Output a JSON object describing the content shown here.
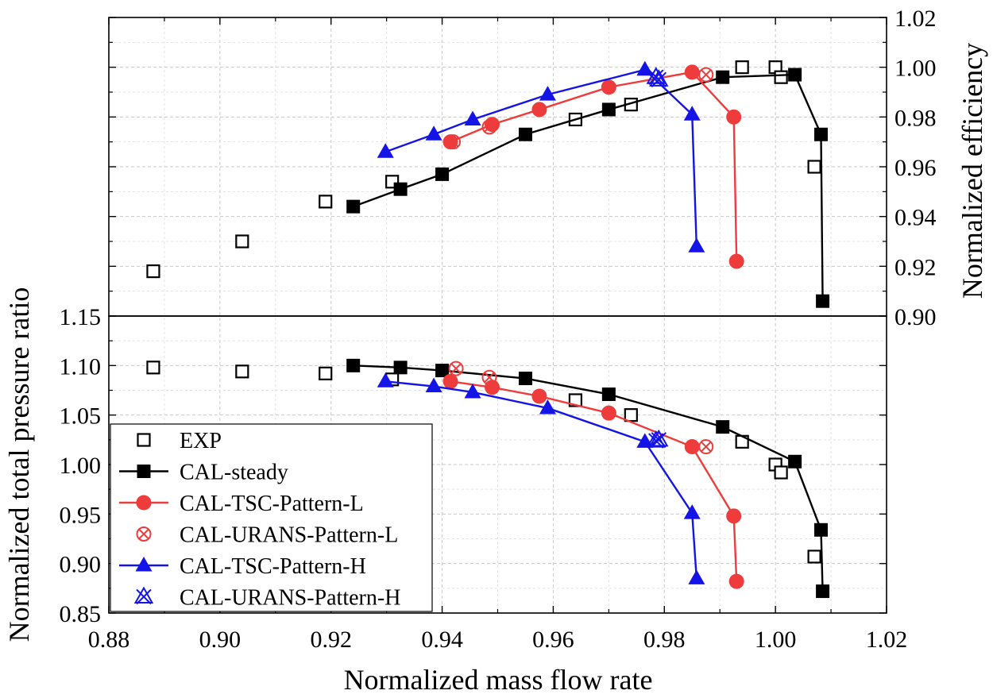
{
  "chart_data": {
    "type": "line",
    "xlabel": "Normalized mass flow rate",
    "xlim": [
      0.88,
      1.02
    ],
    "x_ticks": [
      "0.88",
      "0.90",
      "0.92",
      "0.94",
      "0.96",
      "0.98",
      "1.00",
      "1.02"
    ],
    "panels": [
      {
        "id": "efficiency",
        "ylabel": "Normalized efficiency",
        "ylim": [
          0.9,
          1.02
        ],
        "y_ticks": [
          "0.90",
          "0.92",
          "0.94",
          "0.96",
          "0.98",
          "1.00",
          "1.02"
        ],
        "series": [
          {
            "name": "EXP",
            "style": "open-square",
            "line": false,
            "x": [
              0.888,
              0.904,
              0.919,
              0.931,
              0.964,
              0.974,
              0.994,
              1.0,
              1.001,
              1.007
            ],
            "y": [
              0.918,
              0.93,
              0.946,
              0.954,
              0.979,
              0.985,
              1.0,
              1.0,
              0.996,
              0.96
            ]
          },
          {
            "name": "CAL-steady",
            "style": "filled-square",
            "line": true,
            "x": [
              0.924,
              0.9325,
              0.94,
              0.955,
              0.97,
              0.9905,
              1.0035,
              1.0082,
              1.0085
            ],
            "y": [
              0.944,
              0.951,
              0.957,
              0.973,
              0.983,
              0.996,
              0.997,
              0.973,
              0.906
            ]
          },
          {
            "name": "CAL-TSC-Pattern-L",
            "style": "filled-circle",
            "line": true,
            "x": [
              0.9415,
              0.949,
              0.9575,
              0.97,
              0.985,
              0.9925,
              0.993
            ],
            "y": [
              0.97,
              0.977,
              0.983,
              0.992,
              0.998,
              0.98,
              0.922
            ]
          },
          {
            "name": "CAL-URANS-Pattern-L",
            "style": "crossed-circle",
            "line": false,
            "x": [
              0.942,
              0.9485,
              0.9875
            ],
            "y": [
              0.97,
              0.976,
              0.997
            ]
          },
          {
            "name": "CAL-TSC-Pattern-H",
            "style": "filled-triangle",
            "line": true,
            "x": [
              0.9298,
              0.9385,
              0.9455,
              0.959,
              0.9765,
              0.985,
              0.9858
            ],
            "y": [
              0.966,
              0.973,
              0.979,
              0.989,
              0.999,
              0.981,
              0.928
            ]
          },
          {
            "name": "CAL-URANS-Pattern-H",
            "style": "crossed-triangle",
            "line": false,
            "x": [
              0.9785,
              0.979
            ],
            "y": [
              0.996,
              0.995
            ]
          }
        ]
      },
      {
        "id": "pressure",
        "ylabel": "Normalized total pressure ratio",
        "ylim": [
          0.85,
          1.15
        ],
        "y_ticks": [
          "0.85",
          "0.90",
          "0.95",
          "1.00",
          "1.05",
          "1.10",
          "1.15"
        ],
        "series": [
          {
            "name": "EXP",
            "style": "open-square",
            "line": false,
            "x": [
              0.888,
              0.904,
              0.919,
              0.931,
              0.964,
              0.974,
              0.994,
              1.0,
              1.001,
              1.007
            ],
            "y": [
              1.098,
              1.094,
              1.092,
              1.086,
              1.065,
              1.05,
              1.023,
              1.0,
              0.992,
              0.907
            ]
          },
          {
            "name": "CAL-steady",
            "style": "filled-square",
            "line": true,
            "x": [
              0.924,
              0.9325,
              0.94,
              0.955,
              0.97,
              0.9905,
              1.0035,
              1.0082,
              1.0085
            ],
            "y": [
              1.1,
              1.098,
              1.095,
              1.087,
              1.071,
              1.038,
              1.003,
              0.934,
              0.872
            ]
          },
          {
            "name": "CAL-TSC-Pattern-L",
            "style": "filled-circle",
            "line": true,
            "x": [
              0.9415,
              0.949,
              0.9575,
              0.97,
              0.985,
              0.9925,
              0.993
            ],
            "y": [
              1.084,
              1.078,
              1.069,
              1.052,
              1.018,
              0.948,
              0.882
            ]
          },
          {
            "name": "CAL-URANS-Pattern-L",
            "style": "crossed-circle",
            "line": false,
            "x": [
              0.9425,
              0.9485,
              0.9875
            ],
            "y": [
              1.097,
              1.088,
              1.018
            ]
          },
          {
            "name": "CAL-TSC-Pattern-H",
            "style": "filled-triangle",
            "line": true,
            "x": [
              0.9298,
              0.9385,
              0.9455,
              0.959,
              0.9765,
              0.985,
              0.9858
            ],
            "y": [
              1.084,
              1.079,
              1.073,
              1.057,
              1.023,
              0.951,
              0.885
            ]
          },
          {
            "name": "CAL-URANS-Pattern-H",
            "style": "crossed-triangle",
            "line": false,
            "x": [
              0.9785,
              0.979
            ],
            "y": [
              1.024,
              1.025
            ]
          }
        ]
      }
    ],
    "legend": {
      "placement": "bottom-left of lower panel",
      "entries": [
        "EXP",
        "CAL-steady",
        "CAL-TSC-Pattern-L",
        "CAL-URANS-Pattern-L",
        "CAL-TSC-Pattern-H",
        "CAL-URANS-Pattern-H"
      ]
    },
    "grid": true,
    "colors": {
      "EXP": "#000000",
      "CAL-steady": "#000000",
      "CAL-TSC-Pattern-L": "#ee3b3b",
      "CAL-URANS-Pattern-L": "#ee3b3b",
      "CAL-TSC-Pattern-H": "#1414e6",
      "CAL-URANS-Pattern-H": "#1414e6"
    }
  }
}
